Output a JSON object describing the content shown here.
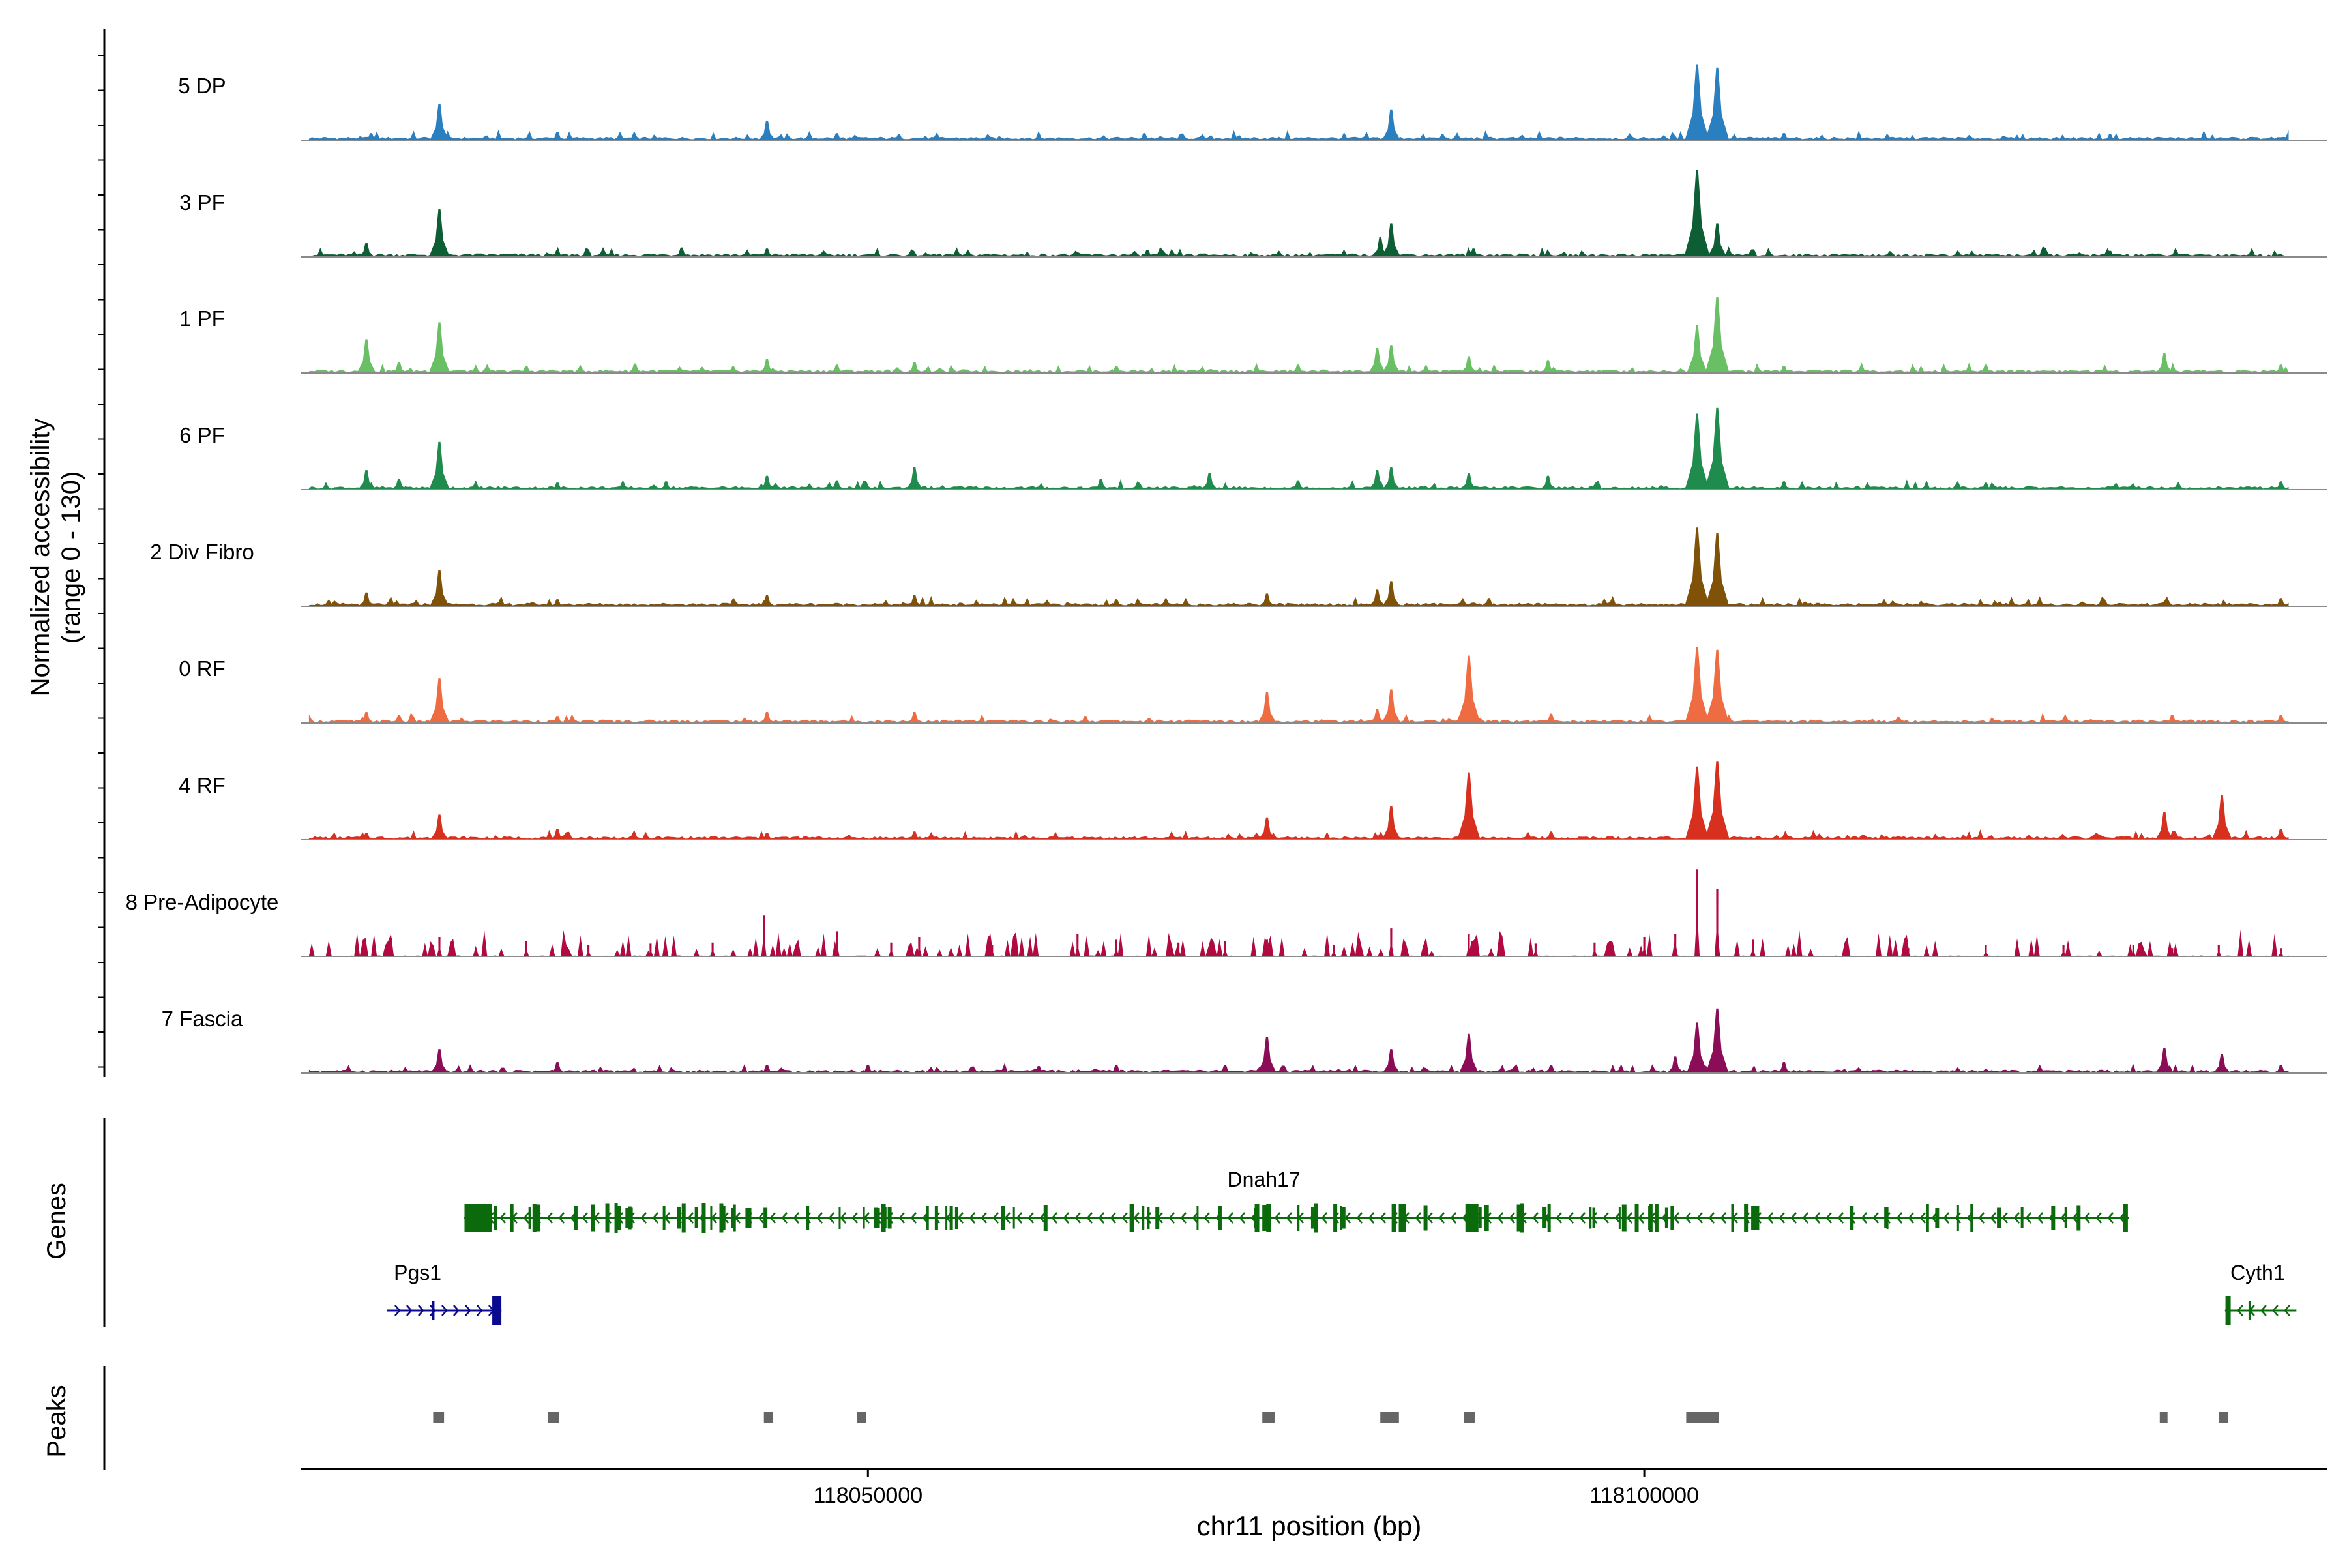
{
  "chart_data": {
    "type": "area",
    "chromosome": "chr11",
    "xlim": [
      118013500,
      118144000
    ],
    "y_axis_label": "Normalized accessibility",
    "y_axis_label_range": "(range 0 - 130)",
    "ylim": [
      0,
      130
    ],
    "x_axis_label": "chr11 position (bp)",
    "x_ticks": [
      118050000,
      118100000
    ],
    "x_tick_labels": [
      "118050000",
      "118100000"
    ],
    "panel_labels": {
      "genes": "Genes",
      "peaks": "Peaks"
    },
    "tracks": [
      {
        "name": "5 DP",
        "color": "#2a7fc0",
        "peaks": [
          [
            118018000,
            8
          ],
          [
            118022400,
            60
          ],
          [
            118030000,
            10
          ],
          [
            118043500,
            30
          ],
          [
            118048000,
            8
          ],
          [
            118052000,
            6
          ],
          [
            118067800,
            8
          ],
          [
            118083700,
            50
          ],
          [
            118087000,
            6
          ],
          [
            118103400,
            130
          ],
          [
            118104700,
            124
          ],
          [
            118109000,
            8
          ],
          [
            118130000,
            6
          ]
        ]
      },
      {
        "name": "3 PF",
        "color": "#0d5e34",
        "peaks": [
          [
            118017700,
            20
          ],
          [
            118022400,
            80
          ],
          [
            118030000,
            8
          ],
          [
            118038000,
            12
          ],
          [
            118043500,
            10
          ],
          [
            118068000,
            8
          ],
          [
            118083000,
            30
          ],
          [
            118083700,
            55
          ],
          [
            118089000,
            10
          ],
          [
            118103400,
            150
          ],
          [
            118104700,
            55
          ],
          [
            118130000,
            6
          ]
        ]
      },
      {
        "name": "1 PF",
        "color": "#69c064",
        "peaks": [
          [
            118017700,
            55
          ],
          [
            118019800,
            15
          ],
          [
            118022400,
            85
          ],
          [
            118028000,
            8
          ],
          [
            118035000,
            12
          ],
          [
            118043500,
            20
          ],
          [
            118048000,
            10
          ],
          [
            118053000,
            15
          ],
          [
            118066000,
            8
          ],
          [
            118077700,
            10
          ],
          [
            118082800,
            40
          ],
          [
            118083700,
            45
          ],
          [
            118088700,
            25
          ],
          [
            118093800,
            18
          ],
          [
            118103400,
            80
          ],
          [
            118104700,
            130
          ],
          [
            118109000,
            8
          ],
          [
            118122000,
            10
          ],
          [
            118133500,
            30
          ],
          [
            118141000,
            10
          ]
        ]
      },
      {
        "name": "6 PF",
        "color": "#1f8b4c",
        "peaks": [
          [
            118017700,
            30
          ],
          [
            118019800,
            15
          ],
          [
            118022400,
            80
          ],
          [
            118030000,
            8
          ],
          [
            118037000,
            10
          ],
          [
            118043500,
            20
          ],
          [
            118048000,
            12
          ],
          [
            118053000,
            35
          ],
          [
            118065000,
            15
          ],
          [
            118072000,
            25
          ],
          [
            118077700,
            12
          ],
          [
            118082800,
            30
          ],
          [
            118083700,
            35
          ],
          [
            118088700,
            25
          ],
          [
            118093800,
            20
          ],
          [
            118103400,
            130
          ],
          [
            118104700,
            140
          ],
          [
            118109000,
            10
          ],
          [
            118122000,
            8
          ],
          [
            118141000,
            10
          ]
        ]
      },
      {
        "name": "2 Div Fibro",
        "color": "#7f5208",
        "peaks": [
          [
            118017700,
            20
          ],
          [
            118022400,
            60
          ],
          [
            118030000,
            8
          ],
          [
            118043500,
            15
          ],
          [
            118053000,
            15
          ],
          [
            118066000,
            8
          ],
          [
            118075700,
            18
          ],
          [
            118082800,
            25
          ],
          [
            118083700,
            40
          ],
          [
            118090000,
            10
          ],
          [
            118103400,
            135
          ],
          [
            118104700,
            125
          ],
          [
            118141000,
            10
          ]
        ]
      },
      {
        "name": "0 RF",
        "color": "#ef6c42",
        "peaks": [
          [
            118017700,
            15
          ],
          [
            118019800,
            10
          ],
          [
            118022400,
            75
          ],
          [
            118030000,
            8
          ],
          [
            118043500,
            15
          ],
          [
            118053000,
            15
          ],
          [
            118064000,
            8
          ],
          [
            118075700,
            50
          ],
          [
            118082800,
            20
          ],
          [
            118083700,
            55
          ],
          [
            118088700,
            115
          ],
          [
            118094000,
            12
          ],
          [
            118103400,
            130
          ],
          [
            118104700,
            125
          ],
          [
            118134000,
            10
          ],
          [
            118141000,
            10
          ]
        ]
      },
      {
        "name": "4 RF",
        "color": "#d7301f",
        "peaks": [
          [
            118017700,
            8
          ],
          [
            118022400,
            40
          ],
          [
            118030000,
            15
          ],
          [
            118043500,
            8
          ],
          [
            118053000,
            10
          ],
          [
            118075700,
            35
          ],
          [
            118083700,
            55
          ],
          [
            118088700,
            115
          ],
          [
            118094000,
            10
          ],
          [
            118103400,
            125
          ],
          [
            118104700,
            135
          ],
          [
            118133500,
            45
          ],
          [
            118137200,
            75
          ],
          [
            118141000,
            15
          ]
        ]
      },
      {
        "name": "8 Pre-Adipocyte",
        "color": "#b20a40",
        "peaks": [
          [
            118017600,
            20
          ],
          [
            118019300,
            28
          ],
          [
            118022400,
            30
          ],
          [
            118028000,
            22
          ],
          [
            118032000,
            15
          ],
          [
            118036000,
            18
          ],
          [
            118040000,
            20
          ],
          [
            118043300,
            68
          ],
          [
            118048000,
            40
          ],
          [
            118051500,
            20
          ],
          [
            118053300,
            30
          ],
          [
            118058000,
            15
          ],
          [
            118063500,
            35
          ],
          [
            118066000,
            25
          ],
          [
            118070000,
            20
          ],
          [
            118073000,
            22
          ],
          [
            118075700,
            25
          ],
          [
            118080000,
            15
          ],
          [
            118083700,
            45
          ],
          [
            118088700,
            35
          ],
          [
            118093000,
            18
          ],
          [
            118096800,
            20
          ],
          [
            118100000,
            30
          ],
          [
            118102000,
            35
          ],
          [
            118103400,
            150
          ],
          [
            118104700,
            115
          ],
          [
            118107000,
            25
          ],
          [
            118110000,
            20
          ],
          [
            118117000,
            10
          ],
          [
            118122000,
            15
          ],
          [
            118127000,
            15
          ],
          [
            118131500,
            15
          ],
          [
            118134000,
            10
          ],
          [
            118137000,
            15
          ],
          [
            118141000,
            10
          ]
        ]
      },
      {
        "name": "7 Fascia",
        "color": "#8b0d58",
        "peaks": [
          [
            118022400,
            38
          ],
          [
            118030000,
            15
          ],
          [
            118043500,
            10
          ],
          [
            118050000,
            10
          ],
          [
            118061000,
            8
          ],
          [
            118066000,
            10
          ],
          [
            118073000,
            10
          ],
          [
            118075700,
            60
          ],
          [
            118083700,
            38
          ],
          [
            118088700,
            65
          ],
          [
            118094000,
            10
          ],
          [
            118102000,
            25
          ],
          [
            118103400,
            85
          ],
          [
            118104700,
            110
          ],
          [
            118109000,
            15
          ],
          [
            118133500,
            40
          ],
          [
            118137200,
            30
          ],
          [
            118141000,
            10
          ]
        ]
      }
    ],
    "genes": [
      {
        "name": "Dnah17",
        "strand": "-",
        "start": 118024000,
        "end": 118131200,
        "color": "#0b6a0b"
      },
      {
        "name": "Pgs1",
        "strand": "+",
        "start": 118019000,
        "end": 118026400,
        "color": "#0a0a8f"
      },
      {
        "name": "Cyth1",
        "strand": "-",
        "start": 118137400,
        "end": 118142000,
        "color": "#0b6a0b"
      }
    ],
    "peaks_color": "#666666",
    "peak_regions": [
      [
        118022000,
        118022700
      ],
      [
        118029400,
        118030100
      ],
      [
        118043300,
        118043900
      ],
      [
        118049300,
        118049900
      ],
      [
        118075400,
        118076200
      ],
      [
        118083000,
        118084200
      ],
      [
        118088400,
        118089100
      ],
      [
        118102700,
        118104800
      ],
      [
        118133200,
        118133700
      ],
      [
        118137000,
        118137600
      ]
    ]
  }
}
